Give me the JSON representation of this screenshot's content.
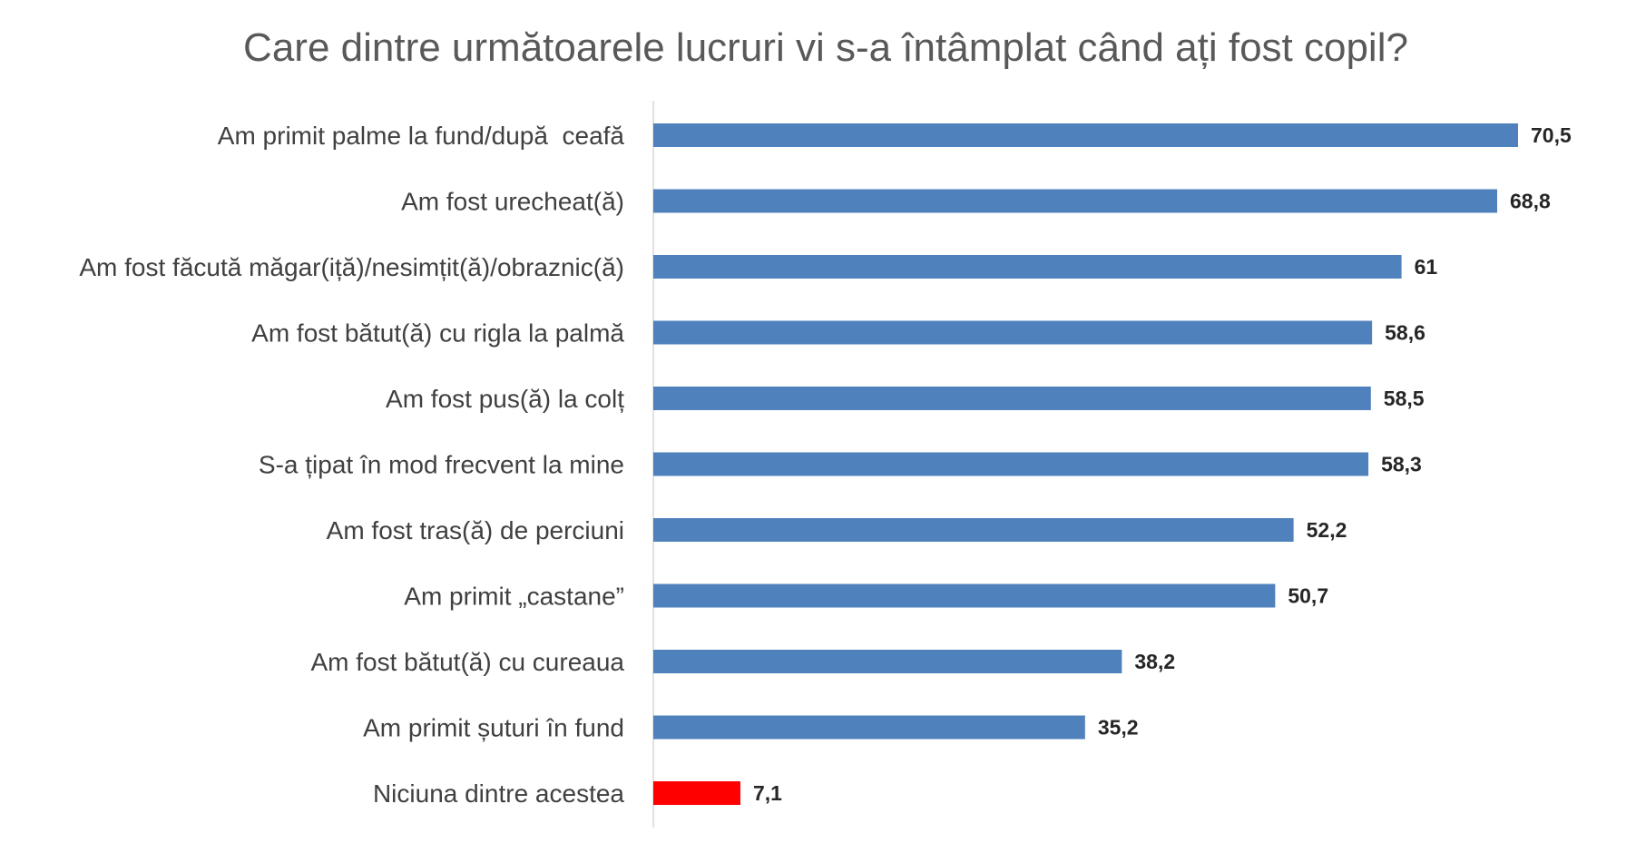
{
  "chart_data": {
    "type": "bar",
    "orientation": "horizontal",
    "title": "Care dintre următoarele lucruri vi s-a întâmplat când ați fost copil?",
    "xlabel": "",
    "ylabel": "",
    "xlim": [
      0,
      80
    ],
    "grid": false,
    "legend": "none",
    "categories": [
      "Am primit palme la fund/după  ceafă",
      "Am fost urecheat(ă)",
      "Am fost făcută măgar(iță)/nesimțit(ă)/obraznic(ă)",
      "Am fost bătut(ă) cu rigla la palmă",
      "Am fost pus(ă) la colț",
      "S-a țipat în mod frecvent la mine",
      "Am fost tras(ă) de perciuni",
      "Am primit „castane”",
      "Am fost bătut(ă) cu cureaua",
      "Am primit șuturi în fund",
      "Niciuna dintre acestea"
    ],
    "values": [
      70.5,
      68.8,
      61,
      58.6,
      58.5,
      58.3,
      52.2,
      50.7,
      38.2,
      35.2,
      7.1
    ],
    "value_labels": [
      "70,5",
      "68,8",
      "61",
      "58,6",
      "58,5",
      "58,3",
      "52,2",
      "50,7",
      "38,2",
      "35,2",
      "7,1"
    ],
    "colors": {
      "default_bar": "#4f81bd",
      "highlight_bar": "#ff0000",
      "axis_line": "#d9d9d9"
    },
    "highlight_index": 10
  }
}
